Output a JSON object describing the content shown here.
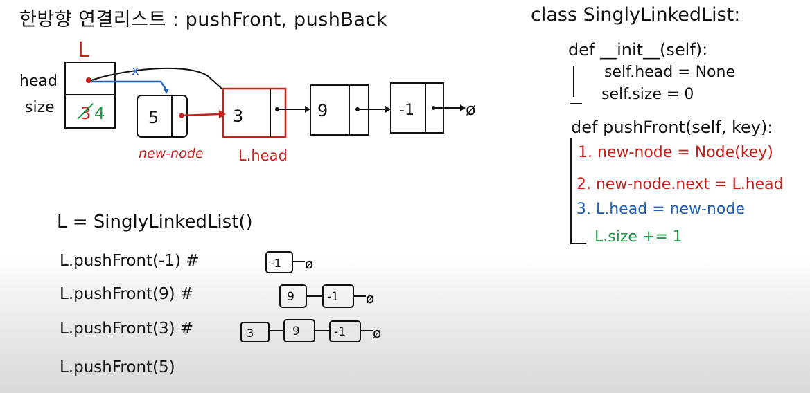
{
  "title": "한방향 연결리스트 : pushFront, pushBack",
  "diagram": {
    "list_label": "L",
    "field_head": "head",
    "field_size": "size",
    "size_old": "3",
    "size_new": "4",
    "strike": "x",
    "nodes": [
      "5",
      "3",
      "9",
      "-1"
    ],
    "terminator": "ø",
    "new_node_label": "new-node",
    "lhead_label": "L.head"
  },
  "code": {
    "class_line": "class SinglyLinkedList:",
    "init_def": "def __init__(self):",
    "init_1": "self.head = None",
    "init_2": "self.size = 0",
    "push_def": "def pushFront(self, key):",
    "step1": "1. new-node = Node(key)",
    "step2": "2. new-node.next = L.head",
    "step3": "3. L.head = new-node",
    "step4": "L.size += 1"
  },
  "calls": {
    "line0": "L = SinglyLinkedList()",
    "line1": "L.pushFront(-1) #",
    "line2": "L.pushFront(9) #",
    "line3": "L.pushFront(3) #",
    "line4": "L.pushFront(5)",
    "mini_vals": [
      "-1",
      "9",
      "3"
    ],
    "mini_term": "ø"
  },
  "colors": {
    "ink": "#111111",
    "red": "#c8201c",
    "blue": "#1f5fb8",
    "green": "#1f9a48"
  }
}
